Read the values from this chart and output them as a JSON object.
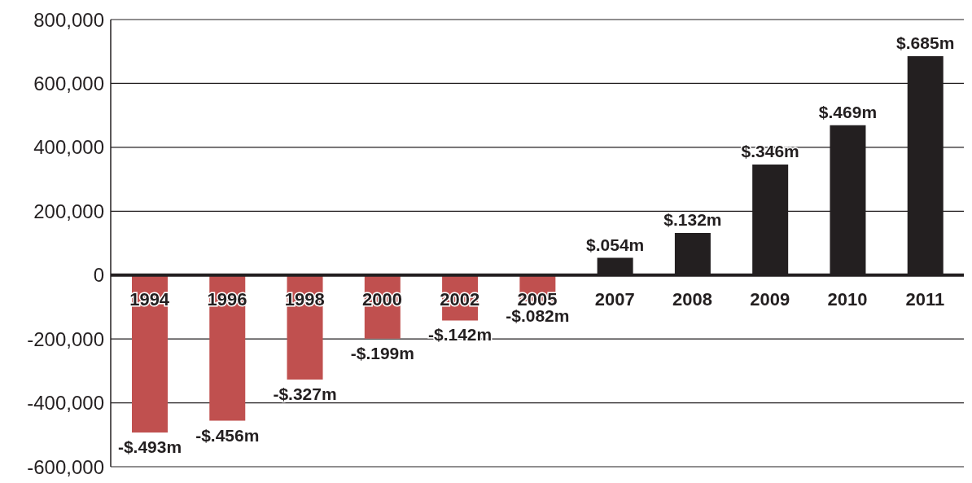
{
  "chart_data": {
    "type": "bar",
    "categories": [
      "1994",
      "1996",
      "1998",
      "2000",
      "2002",
      "2005",
      "2007",
      "2008",
      "2009",
      "2010",
      "2011"
    ],
    "values": [
      -493000,
      -456000,
      -327000,
      -199000,
      -142000,
      -82000,
      54000,
      132000,
      346000,
      469000,
      685000
    ],
    "colors": [
      "#c0504f",
      "#c0504f",
      "#c0504f",
      "#c0504f",
      "#c0504f",
      "#c0504f",
      "#231f20",
      "#231f20",
      "#231f20",
      "#231f20",
      "#231f20"
    ],
    "value_labels": [
      "-$.493m",
      "-$.456m",
      "-$.327m",
      "-$.199m",
      "-$.142m",
      "-$.082m",
      "$.054m",
      "$.132m",
      "$.346m",
      "$.469m",
      "$.685m"
    ],
    "ylim": [
      -600000,
      800000
    ],
    "yticks": [
      {
        "value": -600000,
        "label": "-600,000"
      },
      {
        "value": -400000,
        "label": "-400,000"
      },
      {
        "value": -200000,
        "label": "-200,000"
      },
      0,
      {
        "value": 200000,
        "label": "200,000"
      },
      {
        "value": 400000,
        "label": "400,000"
      },
      {
        "value": 600000,
        "label": "600,000"
      },
      {
        "value": 800000,
        "label": "800,000"
      }
    ],
    "grid": "y"
  }
}
